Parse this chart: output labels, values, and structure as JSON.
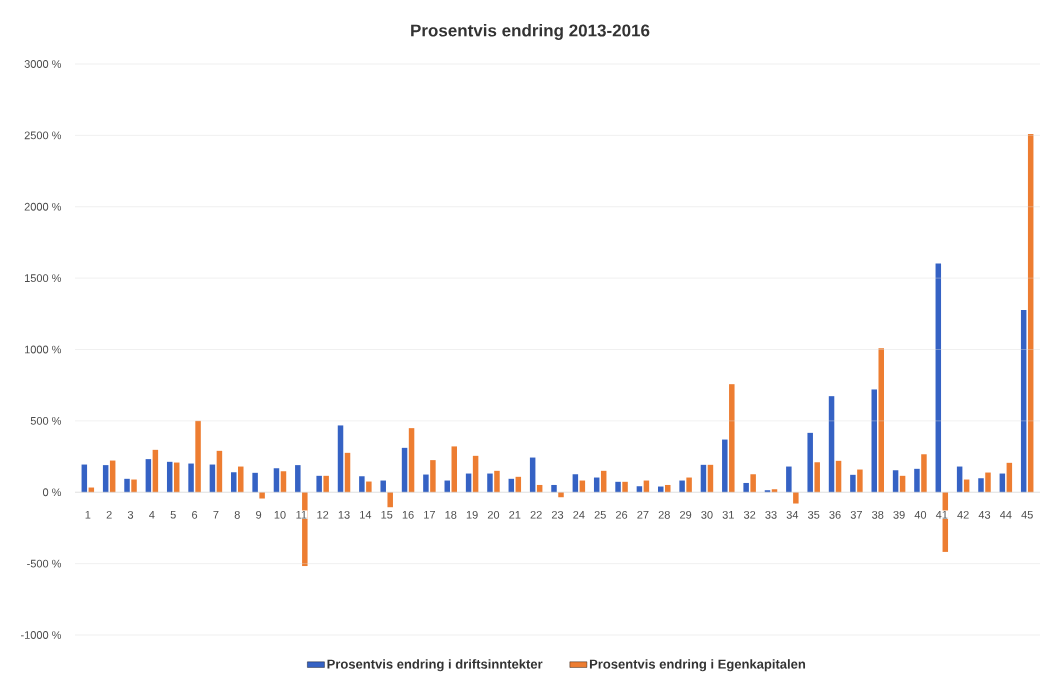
{
  "chart_data": {
    "type": "bar",
    "title": "Prosentvis endring 2013-2016",
    "categories": [
      "1",
      "2",
      "3",
      "4",
      "5",
      "6",
      "7",
      "8",
      "9",
      "10",
      "11",
      "12",
      "13",
      "14",
      "15",
      "16",
      "17",
      "18",
      "19",
      "20",
      "21",
      "22",
      "23",
      "24",
      "25",
      "26",
      "27",
      "28",
      "29",
      "30",
      "31",
      "32",
      "33",
      "34",
      "35",
      "36",
      "37",
      "38",
      "39",
      "40",
      "41",
      "42",
      "43",
      "44",
      "45"
    ],
    "series": [
      {
        "name": "Prosentvis endring i driftsinntekter",
        "color": "#3562c4",
        "values": [
          194,
          190,
          94,
          232,
          213,
          201,
          194,
          140,
          136,
          168,
          190,
          115,
          468,
          112,
          82,
          311,
          124,
          82,
          131,
          131,
          94,
          243,
          51,
          126,
          103,
          73,
          42,
          40,
          82,
          192,
          369,
          65,
          14,
          180,
          416,
          673,
          122,
          720,
          154,
          164,
          1603,
          180,
          98,
          131,
          1276
        ]
      },
      {
        "name": "Prosentvis endring i Egenkapitalen",
        "color": "#ed7d31",
        "values": [
          33,
          222,
          89,
          297,
          208,
          500,
          290,
          180,
          -44,
          147,
          -517,
          115,
          276,
          75,
          -105,
          449,
          225,
          321,
          255,
          150,
          108,
          51,
          -35,
          82,
          150,
          73,
          82,
          51,
          103,
          192,
          757,
          126,
          21,
          -79,
          210,
          220,
          159,
          1009,
          115,
          266,
          -418,
          89,
          138,
          206,
          2510
        ]
      }
    ],
    "ylim": [
      -1000,
      3000
    ],
    "yticks": [
      {
        "value": -1000,
        "label": "-1000 %"
      },
      {
        "value": -500,
        "label": "-500 %"
      },
      {
        "value": 0,
        "label": "0 %"
      },
      {
        "value": 500,
        "label": "500 %"
      },
      {
        "value": 1000,
        "label": "1000 %"
      },
      {
        "value": 1500,
        "label": "1500 %"
      },
      {
        "value": 2000,
        "label": "2000 %"
      },
      {
        "value": 2500,
        "label": "2500 %"
      },
      {
        "value": 3000,
        "label": "3000 %"
      }
    ],
    "grid": "y",
    "legend": "bottom"
  }
}
